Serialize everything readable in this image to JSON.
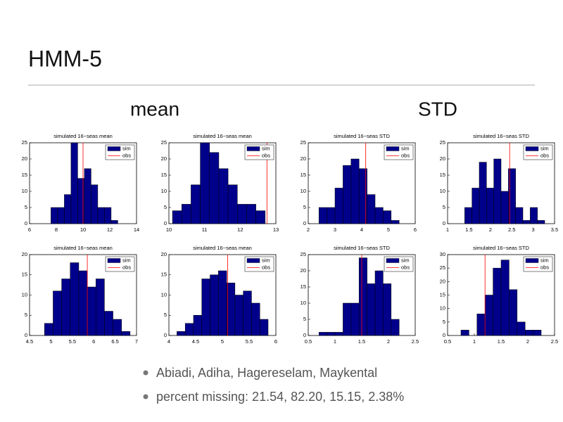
{
  "title": "HMM-5",
  "headers": [
    "mean",
    "STD"
  ],
  "bullets": [
    "Abiadi, Adiha, Hagereselam, Maykental",
    "percent missing: 21.54, 82.20, 15.15, 2.38%"
  ],
  "chart_data": [
    {
      "type": "histogram",
      "title": "simulated 16−seas mean",
      "bins": [
        7.6,
        8.1,
        8.6,
        9.1,
        9.6,
        10.1,
        10.6,
        11.1,
        11.6,
        12.1,
        12.6
      ],
      "series": [
        {
          "name": "sim",
          "color": "#00008b",
          "values": [
            5,
            5,
            9,
            25,
            14,
            17,
            12,
            5,
            5,
            1
          ]
        },
        {
          "name": "obs",
          "color": "#ff0000",
          "values": [
            10.0
          ]
        }
      ],
      "xlim": [
        6,
        14
      ],
      "xticks": [
        6,
        8,
        10,
        12,
        14
      ],
      "ylim": [
        0,
        25
      ],
      "yticks": [
        0,
        5,
        10,
        15,
        20,
        25
      ],
      "legend": "upper right"
    },
    {
      "type": "histogram",
      "title": "simulated 16−seas mean",
      "bins": [
        10.1,
        10.36,
        10.62,
        10.88,
        11.14,
        11.4,
        11.66,
        11.92,
        12.18,
        12.44,
        12.7
      ],
      "series": [
        {
          "name": "sim",
          "color": "#00008b",
          "values": [
            4,
            6,
            12,
            25,
            22,
            17,
            12,
            6,
            6,
            4
          ]
        },
        {
          "name": "obs",
          "color": "#ff0000",
          "values": [
            12.75
          ]
        }
      ],
      "xlim": [
        10,
        13
      ],
      "xticks": [
        10,
        11,
        12,
        13
      ],
      "ylim": [
        0,
        25
      ],
      "yticks": [
        0,
        5,
        10,
        15,
        20,
        25
      ],
      "legend": "upper right"
    },
    {
      "type": "histogram",
      "title": "simulated 16−seas STD",
      "bins": [
        2.4,
        2.7,
        3.0,
        3.3,
        3.6,
        3.9,
        4.2,
        4.5,
        4.8,
        5.1,
        5.4
      ],
      "series": [
        {
          "name": "sim",
          "color": "#00008b",
          "values": [
            5,
            5,
            11,
            18,
            20,
            17,
            9,
            5,
            4,
            1
          ]
        },
        {
          "name": "obs",
          "color": "#ff0000",
          "values": [
            4.15
          ]
        }
      ],
      "xlim": [
        2,
        6
      ],
      "xticks": [
        2,
        3,
        4,
        5,
        6
      ],
      "ylim": [
        0,
        25
      ],
      "yticks": [
        0,
        5,
        10,
        15,
        20,
        25
      ],
      "legend": "upper right"
    },
    {
      "type": "histogram",
      "title": "simulated 16−seas STD",
      "bins": [
        1.4,
        1.57,
        1.74,
        1.91,
        2.08,
        2.25,
        2.42,
        2.59,
        2.76,
        2.93,
        3.1,
        3.27
      ],
      "series": [
        {
          "name": "sim",
          "color": "#00008b",
          "values": [
            5,
            11,
            19,
            11,
            20,
            10,
            17,
            5,
            1,
            5,
            1
          ]
        },
        {
          "name": "obs",
          "color": "#ff0000",
          "values": [
            2.45
          ]
        }
      ],
      "xlim": [
        1,
        3.5
      ],
      "xticks": [
        1,
        1.5,
        2,
        2.5,
        3,
        3.5
      ],
      "ylim": [
        0,
        25
      ],
      "yticks": [
        0,
        5,
        10,
        15,
        20,
        25
      ],
      "legend": "upper right"
    },
    {
      "type": "histogram",
      "title": "simulated 16−seas mean",
      "bins": [
        4.85,
        5.05,
        5.25,
        5.45,
        5.65,
        5.85,
        6.05,
        6.25,
        6.45,
        6.65,
        6.85
      ],
      "series": [
        {
          "name": "sim",
          "color": "#00008b",
          "values": [
            3,
            11,
            14,
            18,
            16,
            12,
            14,
            6,
            4,
            1
          ]
        },
        {
          "name": "obs",
          "color": "#ff0000",
          "values": [
            5.85
          ]
        }
      ],
      "xlim": [
        4.5,
        7
      ],
      "xticks": [
        4.5,
        5,
        5.5,
        6,
        6.5,
        7
      ],
      "ylim": [
        0,
        20
      ],
      "yticks": [
        0,
        5,
        10,
        15,
        20
      ],
      "legend": "upper right"
    },
    {
      "type": "histogram",
      "title": "simulated 16−seas mean",
      "bins": [
        4.15,
        4.305,
        4.46,
        4.615,
        4.77,
        4.925,
        5.08,
        5.235,
        5.39,
        5.545,
        5.7,
        5.855
      ],
      "series": [
        {
          "name": "sim",
          "color": "#00008b",
          "values": [
            1,
            3,
            5,
            14,
            15,
            16,
            13,
            10,
            11,
            8,
            4
          ]
        },
        {
          "name": "obs",
          "color": "#ff0000",
          "values": [
            5.1
          ]
        }
      ],
      "xlim": [
        4,
        6
      ],
      "xticks": [
        4,
        4.5,
        5,
        5.5,
        6
      ],
      "ylim": [
        0,
        20
      ],
      "yticks": [
        0,
        5,
        10,
        15,
        20
      ],
      "legend": "upper right"
    },
    {
      "type": "histogram",
      "title": "simulated 16−seas STD",
      "bins": [
        0.7,
        0.85,
        1.0,
        1.15,
        1.3,
        1.45,
        1.6,
        1.75,
        1.9,
        2.05,
        2.2
      ],
      "series": [
        {
          "name": "sim",
          "color": "#00008b",
          "values": [
            1,
            1,
            1,
            10,
            10,
            24,
            16,
            20,
            16,
            5
          ]
        },
        {
          "name": "obs",
          "color": "#ff0000",
          "values": [
            1.5
          ]
        }
      ],
      "xlim": [
        0.5,
        2.5
      ],
      "xticks": [
        0.5,
        1,
        1.5,
        2,
        2.5
      ],
      "ylim": [
        0,
        25
      ],
      "yticks": [
        0,
        5,
        10,
        15,
        20,
        25
      ],
      "legend": "upper right"
    },
    {
      "type": "histogram",
      "title": "simulated 16−seas STD",
      "bins": [
        0.75,
        0.9,
        1.05,
        1.2,
        1.35,
        1.5,
        1.65,
        1.8,
        1.95,
        2.1,
        2.25
      ],
      "series": [
        {
          "name": "sim",
          "color": "#00008b",
          "values": [
            2,
            0,
            8,
            15,
            25,
            28,
            17,
            5,
            2,
            2
          ]
        },
        {
          "name": "obs",
          "color": "#ff0000",
          "values": [
            1.2
          ]
        }
      ],
      "xlim": [
        0.5,
        2.5
      ],
      "xticks": [
        0.5,
        1,
        1.5,
        2,
        2.5
      ],
      "ylim": [
        0,
        30
      ],
      "yticks": [
        0,
        5,
        10,
        15,
        20,
        25,
        30
      ],
      "legend": "upper right"
    }
  ]
}
